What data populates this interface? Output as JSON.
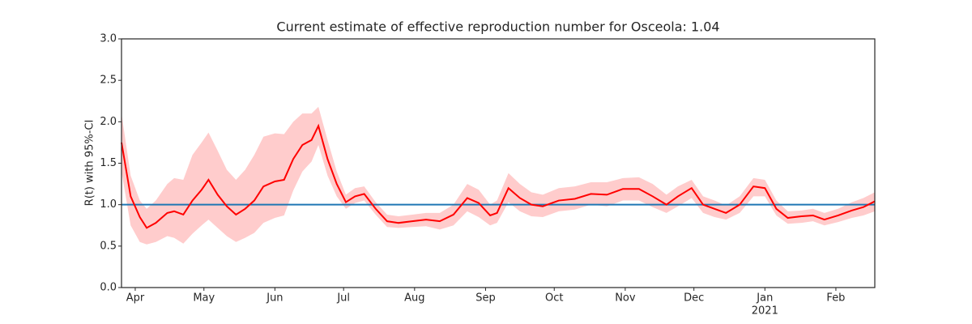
{
  "chart_data": {
    "type": "line",
    "title": "Current estimate of effective reproduction number for Osceola: 1.04",
    "y_label": "R(t) with 95%-CI",
    "x": [
      "2020-03-26",
      "2020-03-30",
      "2020-04-03",
      "2020-04-06",
      "2020-04-10",
      "2020-04-15",
      "2020-04-18",
      "2020-04-22",
      "2020-04-26",
      "2020-04-30",
      "2020-05-03",
      "2020-05-07",
      "2020-05-11",
      "2020-05-15",
      "2020-05-19",
      "2020-05-23",
      "2020-05-27",
      "2020-06-01",
      "2020-06-05",
      "2020-06-09",
      "2020-06-13",
      "2020-06-17",
      "2020-06-20",
      "2020-06-24",
      "2020-06-28",
      "2020-07-02",
      "2020-07-06",
      "2020-07-10",
      "2020-07-15",
      "2020-07-20",
      "2020-07-25",
      "2020-07-31",
      "2020-08-06",
      "2020-08-12",
      "2020-08-18",
      "2020-08-24",
      "2020-08-29",
      "2020-09-03",
      "2020-09-06",
      "2020-09-11",
      "2020-09-16",
      "2020-09-21",
      "2020-09-26",
      "2020-10-03",
      "2020-10-10",
      "2020-10-17",
      "2020-10-24",
      "2020-10-31",
      "2020-11-07",
      "2020-11-13",
      "2020-11-19",
      "2020-11-24",
      "2020-11-30",
      "2020-12-05",
      "2020-12-10",
      "2020-12-15",
      "2020-12-21",
      "2020-12-27",
      "2021-01-01",
      "2021-01-06",
      "2021-01-11",
      "2021-01-17",
      "2021-01-22",
      "2021-01-27",
      "2021-02-02",
      "2021-02-08",
      "2021-02-13",
      "2021-02-18"
    ],
    "values": [
      1.75,
      1.1,
      0.85,
      0.72,
      0.78,
      0.9,
      0.92,
      0.88,
      1.05,
      1.18,
      1.3,
      1.12,
      0.98,
      0.88,
      0.95,
      1.05,
      1.22,
      1.28,
      1.3,
      1.55,
      1.72,
      1.78,
      1.95,
      1.55,
      1.25,
      1.03,
      1.1,
      1.13,
      0.95,
      0.8,
      0.78,
      0.8,
      0.82,
      0.8,
      0.88,
      1.08,
      1.02,
      0.87,
      0.9,
      1.2,
      1.08,
      1.0,
      0.98,
      1.05,
      1.07,
      1.13,
      1.12,
      1.19,
      1.19,
      1.1,
      1.0,
      1.1,
      1.2,
      1.0,
      0.95,
      0.9,
      1.0,
      1.22,
      1.2,
      0.95,
      0.84,
      0.86,
      0.87,
      0.82,
      0.87,
      0.93,
      0.97,
      1.04
    ],
    "lower": [
      1.4,
      0.75,
      0.55,
      0.52,
      0.55,
      0.62,
      0.6,
      0.53,
      0.65,
      0.75,
      0.82,
      0.72,
      0.62,
      0.55,
      0.6,
      0.66,
      0.78,
      0.84,
      0.87,
      1.17,
      1.4,
      1.52,
      1.72,
      1.35,
      1.1,
      0.95,
      1.02,
      1.05,
      0.88,
      0.73,
      0.72,
      0.73,
      0.74,
      0.7,
      0.75,
      0.92,
      0.85,
      0.75,
      0.78,
      1.03,
      0.92,
      0.86,
      0.85,
      0.92,
      0.94,
      1.0,
      0.98,
      1.05,
      1.05,
      0.97,
      0.9,
      0.98,
      1.08,
      0.9,
      0.85,
      0.82,
      0.9,
      1.1,
      1.1,
      0.87,
      0.77,
      0.78,
      0.8,
      0.75,
      0.79,
      0.84,
      0.87,
      0.92
    ],
    "upper": [
      2.1,
      1.35,
      1.05,
      0.95,
      1.05,
      1.25,
      1.32,
      1.3,
      1.6,
      1.75,
      1.87,
      1.65,
      1.42,
      1.3,
      1.42,
      1.6,
      1.82,
      1.86,
      1.85,
      2.0,
      2.1,
      2.1,
      2.18,
      1.78,
      1.4,
      1.12,
      1.2,
      1.22,
      1.03,
      0.88,
      0.86,
      0.88,
      0.9,
      0.9,
      1.0,
      1.25,
      1.18,
      1.0,
      1.05,
      1.38,
      1.25,
      1.15,
      1.12,
      1.2,
      1.22,
      1.27,
      1.27,
      1.32,
      1.33,
      1.25,
      1.12,
      1.22,
      1.3,
      1.1,
      1.05,
      0.99,
      1.1,
      1.32,
      1.3,
      1.05,
      0.92,
      0.93,
      0.95,
      0.9,
      0.95,
      1.03,
      1.08,
      1.15
    ],
    "color": "#ff0000",
    "band_color": "#ffcccc",
    "reference_line": {
      "value": 1.0,
      "color": "#1f77b4"
    },
    "xlim": [
      "2020-03-26",
      "2021-02-18"
    ],
    "xticks": [
      {
        "value": "2020-04-01",
        "label": "Apr"
      },
      {
        "value": "2020-05-01",
        "label": "May"
      },
      {
        "value": "2020-06-01",
        "label": "Jun"
      },
      {
        "value": "2020-07-01",
        "label": "Jul"
      },
      {
        "value": "2020-08-01",
        "label": "Aug"
      },
      {
        "value": "2020-09-01",
        "label": "Sep"
      },
      {
        "value": "2020-10-01",
        "label": "Oct"
      },
      {
        "value": "2020-11-01",
        "label": "Nov"
      },
      {
        "value": "2020-12-01",
        "label": "Dec"
      },
      {
        "value": "2021-01-01",
        "label": "Jan"
      },
      {
        "value": "2021-02-01",
        "label": "Feb"
      }
    ],
    "x_year_label": {
      "value": "2021-01-01",
      "label": "2021"
    },
    "ylim": [
      0,
      3
    ],
    "yticks": [
      {
        "value": 0,
        "label": "0.0"
      },
      0.5,
      {
        "value": 1,
        "label": "1.0"
      },
      1.5,
      {
        "value": 2,
        "label": "2.0"
      },
      2.5,
      {
        "value": 3,
        "label": "3.0"
      }
    ]
  }
}
